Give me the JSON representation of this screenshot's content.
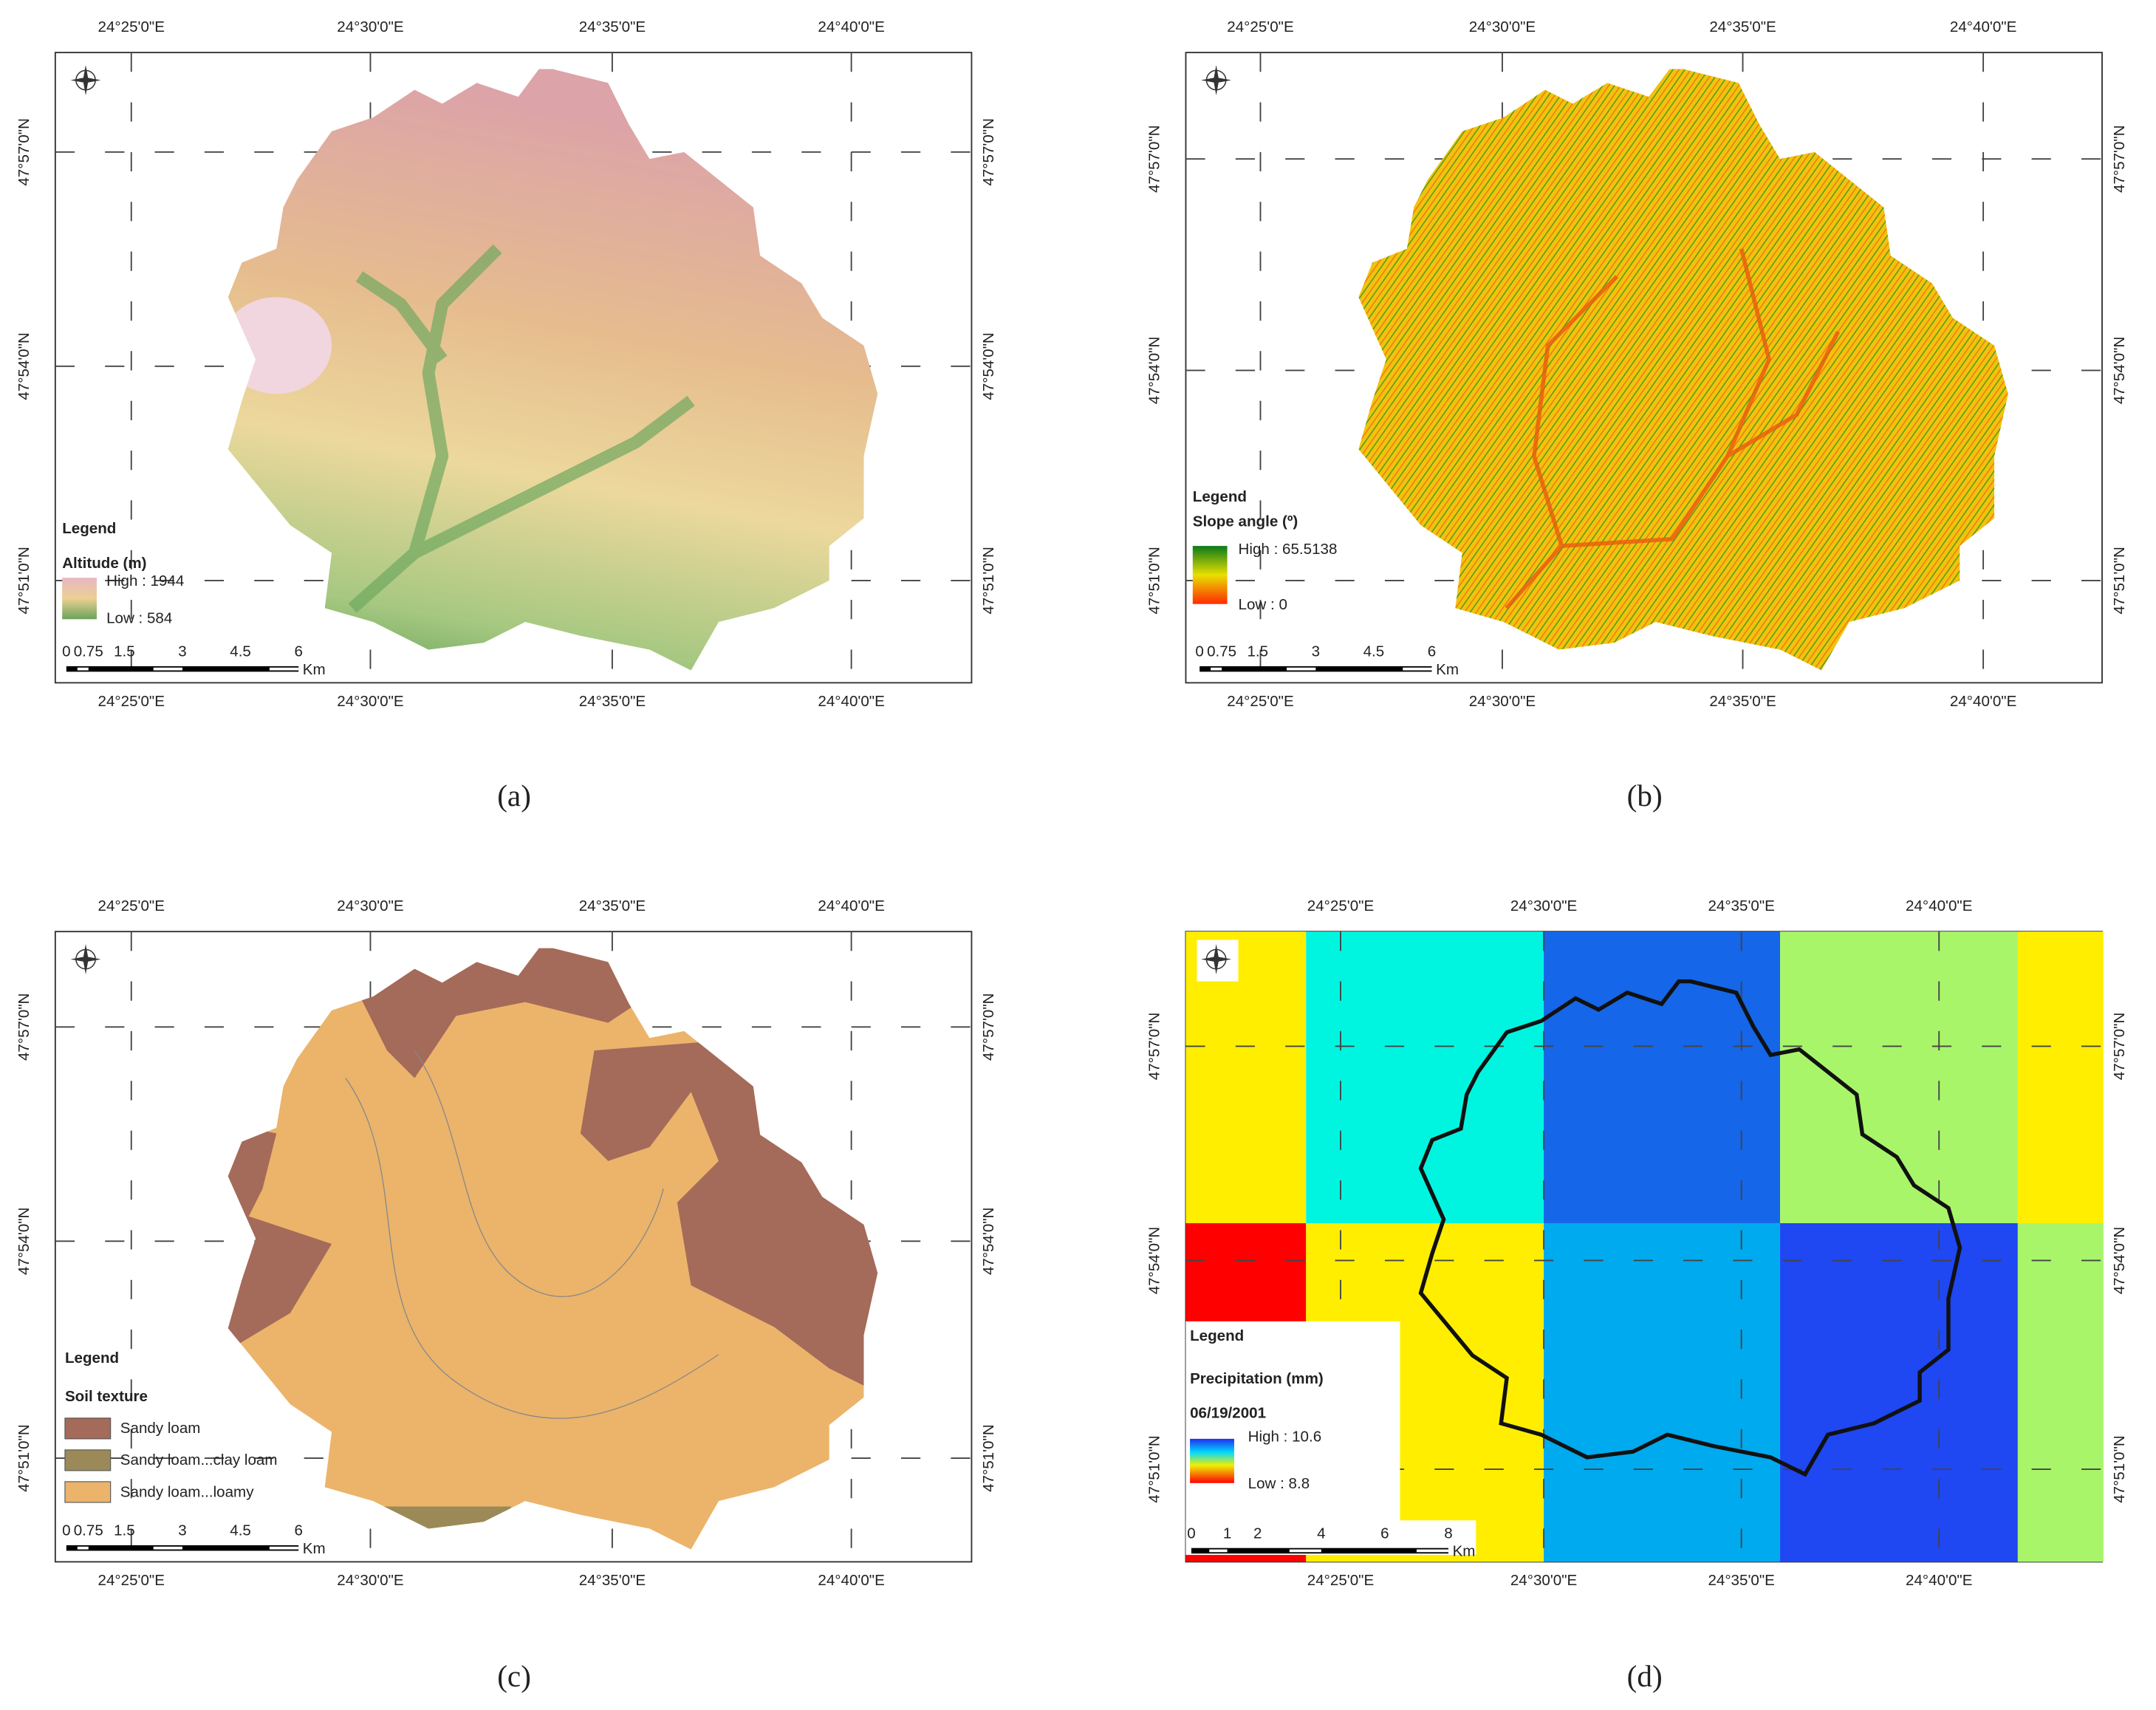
{
  "panels": [
    {
      "caption": "(a)",
      "top_ticks": [
        "24°25'0\"E",
        "24°30'0\"E",
        "24°35'0\"E",
        "24°40'0\"E"
      ],
      "bottom_ticks": [
        "24°25'0\"E",
        "24°30'0\"E",
        "24°35'0\"E",
        "24°40'0\"E"
      ],
      "left_ticks": [
        "47°57'0\"N",
        "47°54'0\"N",
        "47°51'0\"N"
      ],
      "right_ticks": [
        "47°57'0\"N",
        "47°54'0\"N",
        "47°51'0\"N"
      ],
      "legend": {
        "title": "Legend",
        "subtitle": "Altitude (m)",
        "high": "High : 1944",
        "low": "Low : 584"
      },
      "scale_bar": {
        "labels": [
          "0",
          "0.75",
          "1.5",
          "3",
          "4.5",
          "6"
        ],
        "unit": "Km"
      }
    },
    {
      "caption": "(b)",
      "top_ticks": [
        "24°25'0\"E",
        "24°30'0\"E",
        "24°35'0\"E",
        "24°40'0\"E"
      ],
      "bottom_ticks": [
        "24°25'0\"E",
        "24°30'0\"E",
        "24°35'0\"E",
        "24°40'0\"E"
      ],
      "left_ticks": [
        "47°57'0\"N",
        "47°54'0\"N",
        "47°51'0\"N"
      ],
      "right_ticks": [
        "47°57'0\"N",
        "47°54'0\"N",
        "47°51'0\"N"
      ],
      "legend": {
        "title": "Legend",
        "subtitle": "Slope angle (º)",
        "high": "High : 65.5138",
        "low": "Low : 0"
      },
      "scale_bar": {
        "labels": [
          "0",
          "0.75",
          "1.5",
          "3",
          "4.5",
          "6"
        ],
        "unit": "Km"
      }
    },
    {
      "caption": "(c)",
      "top_ticks": [
        "24°25'0\"E",
        "24°30'0\"E",
        "24°35'0\"E",
        "24°40'0\"E"
      ],
      "bottom_ticks": [
        "24°25'0\"E",
        "24°30'0\"E",
        "24°35'0\"E",
        "24°40'0\"E"
      ],
      "left_ticks": [
        "47°57'0\"N",
        "47°54'0\"N",
        "47°51'0\"N"
      ],
      "right_ticks": [
        "47°57'0\"N",
        "47°54'0\"N",
        "47°51'0\"N"
      ],
      "legend": {
        "title": "Legend",
        "subtitle": "Soil texture",
        "items": [
          "Sandy loam",
          "Sandy loam...clay loam",
          "Sandy loam...loamy"
        ]
      },
      "scale_bar": {
        "labels": [
          "0",
          "0.75",
          "1.5",
          "3",
          "4.5",
          "6"
        ],
        "unit": "Km"
      }
    },
    {
      "caption": "(d)",
      "top_ticks": [
        "24°25'0\"E",
        "24°30'0\"E",
        "24°35'0\"E",
        "24°40'0\"E"
      ],
      "bottom_ticks": [
        "24°25'0\"E",
        "24°30'0\"E",
        "24°35'0\"E",
        "24°40'0\"E"
      ],
      "left_ticks": [
        "47°57'0\"N",
        "47°54'0\"N",
        "47°51'0\"N"
      ],
      "right_ticks": [
        "47°57'0\"N",
        "47°54'0\"N",
        "47°51'0\"N"
      ],
      "legend": {
        "title": "Legend",
        "subtitle": "Precipitation (mm)",
        "date": "06/19/2001",
        "high": "High : 10.6",
        "low": "Low : 8.8"
      },
      "scale_bar": {
        "labels": [
          "0",
          "1",
          "2",
          "4",
          "6",
          "8"
        ],
        "unit": "Km"
      }
    }
  ]
}
